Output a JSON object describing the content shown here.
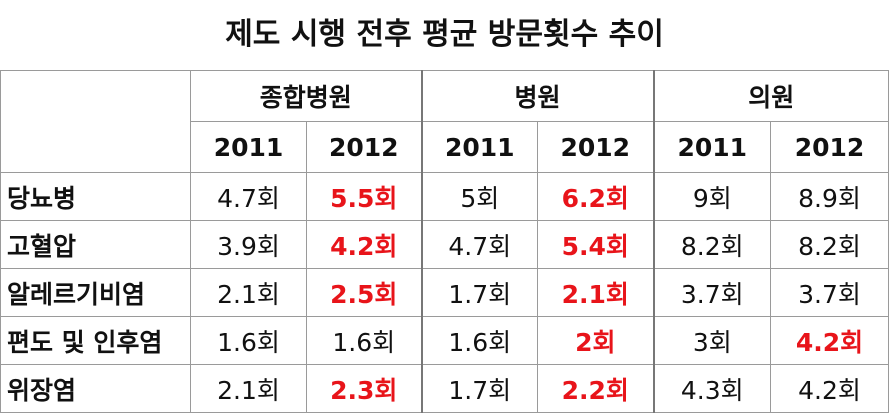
{
  "title": "제도 시행 전후 평균 방문횟수 추이",
  "table": {
    "groups": [
      "종합병원",
      "병원",
      "의원"
    ],
    "years": [
      "2011",
      "2012",
      "2011",
      "2012",
      "2011",
      "2012"
    ],
    "highlight_color": "#e8141a",
    "rows": [
      {
        "label": "당뇨병",
        "cells": [
          "4.7회",
          "5.5회",
          "5회",
          "6.2회",
          "9회",
          "8.9회"
        ],
        "highlighted": [
          false,
          true,
          false,
          true,
          false,
          false
        ]
      },
      {
        "label": "고혈압",
        "cells": [
          "3.9회",
          "4.2회",
          "4.7회",
          "5.4회",
          "8.2회",
          "8.2회"
        ],
        "highlighted": [
          false,
          true,
          false,
          true,
          false,
          false
        ]
      },
      {
        "label": "알레르기비염",
        "cells": [
          "2.1회",
          "2.5회",
          "1.7회",
          "2.1회",
          "3.7회",
          "3.7회"
        ],
        "highlighted": [
          false,
          true,
          false,
          true,
          false,
          false
        ]
      },
      {
        "label": "편도 및 인후염",
        "cells": [
          "1.6회",
          "1.6회",
          "1.6회",
          "2회",
          "3회",
          "4.2회"
        ],
        "highlighted": [
          false,
          false,
          false,
          true,
          false,
          true
        ]
      },
      {
        "label": "위장염",
        "cells": [
          "2.1회",
          "2.3회",
          "1.7회",
          "2.2회",
          "4.3회",
          "4.2회"
        ],
        "highlighted": [
          false,
          true,
          false,
          true,
          false,
          false
        ]
      }
    ]
  }
}
